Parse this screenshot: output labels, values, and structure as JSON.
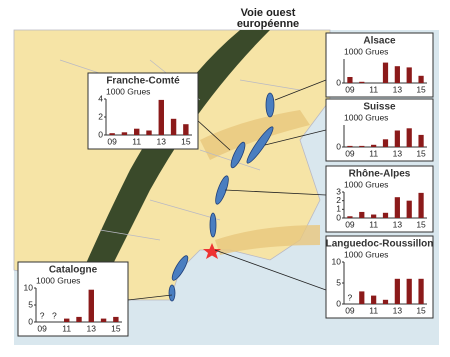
{
  "map": {
    "title": "Voie ouest européenne"
  },
  "chart_data": [
    {
      "type": "bar",
      "title": "Franche-Comté",
      "ylabel": "1000 Grues",
      "categories": [
        "09",
        null,
        "11",
        null,
        "13",
        null,
        "15"
      ],
      "values": [
        0.2,
        0.3,
        0.7,
        0.5,
        3.9,
        1.8,
        1.2
      ],
      "color": "#8b1a1a",
      "ylim": [
        0,
        4
      ],
      "yticks": [
        0,
        2,
        4
      ]
    },
    {
      "type": "bar",
      "title": "Alsace",
      "ylabel": "1000 Grues",
      "categories": [
        "09",
        null,
        "11",
        null,
        "13",
        null,
        "15"
      ],
      "values": [
        0.25,
        0.05,
        0,
        0.85,
        0.7,
        0.65,
        0.3
      ],
      "color": "#8b1a1a",
      "ylim": [
        0,
        1
      ],
      "yticks": [
        0
      ]
    },
    {
      "type": "bar",
      "title": "Suisse",
      "ylabel": "1000 Grues",
      "categories": [
        "09",
        null,
        "11",
        null,
        "13",
        null,
        "15"
      ],
      "values": [
        0.05,
        0.05,
        0.1,
        0.35,
        0.75,
        0.85,
        0.55
      ],
      "color": "#8b1a1a",
      "ylim": [
        0,
        1
      ],
      "yticks": [
        0
      ]
    },
    {
      "type": "bar",
      "title": "Rhône-Alpes",
      "ylabel": "1000 Grues",
      "categories": [
        "09",
        null,
        "11",
        null,
        "13",
        null,
        "15"
      ],
      "values": [
        0.2,
        0.7,
        0.4,
        0.6,
        2.4,
        2.0,
        2.9
      ],
      "color": "#8b1a1a",
      "ylim": [
        0,
        3
      ],
      "yticks": [
        0,
        1,
        2,
        3
      ]
    },
    {
      "type": "bar",
      "title": "Languedoc-Roussillon",
      "ylabel": "1000 Grues",
      "categories": [
        "09",
        null,
        "11",
        null,
        "13",
        null,
        "15"
      ],
      "values": [
        null,
        3,
        2,
        1,
        6,
        6,
        6
      ],
      "value_labels": [
        "?",
        null,
        null,
        null,
        null,
        null,
        null
      ],
      "color": "#8b1a1a",
      "ylim": [
        0,
        10
      ],
      "yticks": [
        0,
        5,
        10
      ]
    },
    {
      "type": "bar",
      "title": "Catalogne",
      "ylabel": "1000 Grues",
      "categories": [
        "09",
        null,
        "11",
        null,
        "13",
        null,
        "15"
      ],
      "values": [
        null,
        null,
        1,
        1.5,
        9.5,
        1,
        1.5
      ],
      "value_labels": [
        "?",
        "?",
        null,
        null,
        null,
        null,
        null
      ],
      "color": "#8b1a1a",
      "ylim": [
        0,
        10
      ],
      "yticks": [
        0,
        5,
        10
      ]
    }
  ]
}
